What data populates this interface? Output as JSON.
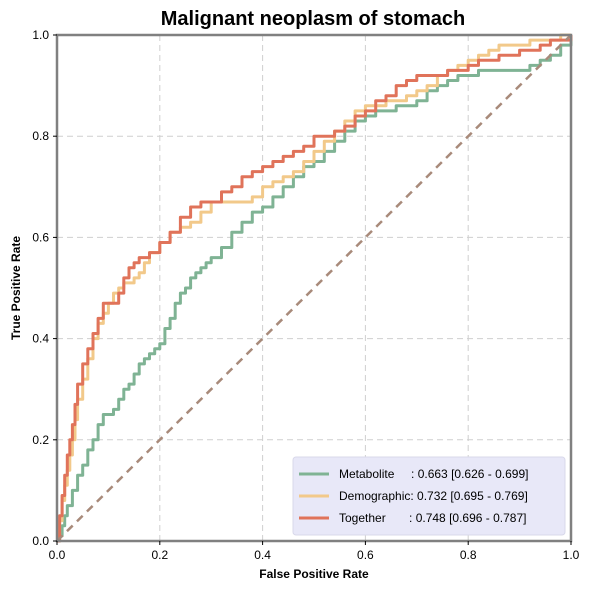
{
  "chart_data": {
    "type": "line",
    "title": "Malignant neoplasm of stomach",
    "xlabel": "False Positive Rate",
    "ylabel": "True Positive Rate",
    "xlim": [
      0,
      1
    ],
    "ylim": [
      0,
      1
    ],
    "xticks": [
      "0.0",
      "0.2",
      "0.4",
      "0.6",
      "0.8",
      "1.0"
    ],
    "yticks": [
      "0.0",
      "0.2",
      "0.4",
      "0.6",
      "0.8",
      "1.0"
    ],
    "grid": true,
    "legend_position": "bottom-right",
    "colors": {
      "metabolite": "#7fb394",
      "demographic": "#f2c98a",
      "together": "#e0735a",
      "chance": "#a88a7a",
      "frame": "#808080",
      "grid": "#cfcfcf",
      "legend_bg": "#e8e8f8"
    },
    "series": [
      {
        "name": "Metabolite",
        "legend_label": "Metabolite     : 0.663 [0.626 - 0.699]",
        "color": "#7fb394",
        "x": [
          0,
          0.005,
          0.01,
          0.015,
          0.02,
          0.03,
          0.04,
          0.05,
          0.06,
          0.07,
          0.08,
          0.09,
          0.1,
          0.11,
          0.12,
          0.13,
          0.14,
          0.15,
          0.16,
          0.17,
          0.18,
          0.19,
          0.2,
          0.21,
          0.22,
          0.23,
          0.24,
          0.25,
          0.26,
          0.27,
          0.28,
          0.29,
          0.3,
          0.32,
          0.34,
          0.36,
          0.38,
          0.4,
          0.42,
          0.44,
          0.46,
          0.48,
          0.5,
          0.52,
          0.54,
          0.56,
          0.58,
          0.6,
          0.62,
          0.64,
          0.66,
          0.68,
          0.7,
          0.72,
          0.74,
          0.76,
          0.78,
          0.8,
          0.82,
          0.84,
          0.86,
          0.88,
          0.9,
          0.92,
          0.94,
          0.96,
          0.98,
          1.0
        ],
        "y": [
          0,
          0.01,
          0.03,
          0.05,
          0.07,
          0.1,
          0.13,
          0.15,
          0.18,
          0.2,
          0.23,
          0.25,
          0.25,
          0.26,
          0.28,
          0.3,
          0.31,
          0.33,
          0.35,
          0.36,
          0.37,
          0.38,
          0.39,
          0.42,
          0.44,
          0.47,
          0.49,
          0.5,
          0.52,
          0.53,
          0.54,
          0.55,
          0.56,
          0.58,
          0.61,
          0.63,
          0.65,
          0.66,
          0.68,
          0.7,
          0.72,
          0.74,
          0.75,
          0.77,
          0.79,
          0.81,
          0.83,
          0.84,
          0.85,
          0.85,
          0.86,
          0.86,
          0.87,
          0.89,
          0.9,
          0.91,
          0.92,
          0.92,
          0.93,
          0.93,
          0.93,
          0.93,
          0.93,
          0.94,
          0.95,
          0.96,
          0.98,
          1.0
        ]
      },
      {
        "name": "Demographic",
        "legend_label": "Demographic: 0.732 [0.695 - 0.769]",
        "color": "#f2c98a",
        "x": [
          0,
          0.005,
          0.01,
          0.015,
          0.02,
          0.025,
          0.03,
          0.035,
          0.04,
          0.05,
          0.06,
          0.07,
          0.08,
          0.09,
          0.1,
          0.11,
          0.12,
          0.13,
          0.14,
          0.15,
          0.16,
          0.17,
          0.18,
          0.2,
          0.22,
          0.24,
          0.26,
          0.28,
          0.3,
          0.32,
          0.34,
          0.36,
          0.38,
          0.4,
          0.42,
          0.44,
          0.46,
          0.48,
          0.5,
          0.52,
          0.54,
          0.56,
          0.58,
          0.6,
          0.62,
          0.64,
          0.66,
          0.68,
          0.7,
          0.72,
          0.74,
          0.76,
          0.78,
          0.8,
          0.82,
          0.84,
          0.86,
          0.88,
          0.9,
          0.92,
          0.94,
          0.96,
          0.98,
          1.0
        ],
        "y": [
          0,
          0.04,
          0.08,
          0.11,
          0.14,
          0.17,
          0.2,
          0.24,
          0.28,
          0.32,
          0.36,
          0.4,
          0.43,
          0.45,
          0.47,
          0.49,
          0.5,
          0.51,
          0.51,
          0.52,
          0.53,
          0.55,
          0.57,
          0.59,
          0.61,
          0.62,
          0.63,
          0.65,
          0.67,
          0.67,
          0.67,
          0.67,
          0.68,
          0.7,
          0.71,
          0.72,
          0.73,
          0.75,
          0.77,
          0.79,
          0.81,
          0.83,
          0.85,
          0.86,
          0.86,
          0.87,
          0.87,
          0.88,
          0.89,
          0.9,
          0.92,
          0.93,
          0.94,
          0.95,
          0.96,
          0.97,
          0.98,
          0.98,
          0.98,
          0.99,
          0.99,
          0.99,
          1.0,
          1.0
        ]
      },
      {
        "name": "Together",
        "legend_label": "Together       : 0.748 [0.696 - 0.787]",
        "color": "#e0735a",
        "x": [
          0,
          0.005,
          0.01,
          0.015,
          0.02,
          0.025,
          0.03,
          0.035,
          0.04,
          0.05,
          0.06,
          0.07,
          0.08,
          0.09,
          0.1,
          0.11,
          0.12,
          0.13,
          0.14,
          0.15,
          0.16,
          0.17,
          0.18,
          0.2,
          0.22,
          0.24,
          0.26,
          0.28,
          0.3,
          0.32,
          0.34,
          0.36,
          0.38,
          0.4,
          0.42,
          0.44,
          0.46,
          0.48,
          0.5,
          0.52,
          0.54,
          0.56,
          0.58,
          0.6,
          0.62,
          0.64,
          0.66,
          0.68,
          0.7,
          0.72,
          0.74,
          0.76,
          0.78,
          0.8,
          0.82,
          0.84,
          0.86,
          0.88,
          0.9,
          0.92,
          0.94,
          0.96,
          0.98,
          1.0
        ],
        "y": [
          0,
          0.05,
          0.09,
          0.13,
          0.17,
          0.2,
          0.23,
          0.27,
          0.31,
          0.35,
          0.38,
          0.41,
          0.44,
          0.47,
          0.47,
          0.47,
          0.49,
          0.52,
          0.54,
          0.55,
          0.56,
          0.56,
          0.57,
          0.59,
          0.61,
          0.64,
          0.66,
          0.67,
          0.67,
          0.69,
          0.7,
          0.72,
          0.73,
          0.74,
          0.75,
          0.76,
          0.77,
          0.78,
          0.8,
          0.8,
          0.81,
          0.82,
          0.84,
          0.85,
          0.87,
          0.88,
          0.9,
          0.91,
          0.92,
          0.92,
          0.92,
          0.93,
          0.93,
          0.94,
          0.95,
          0.95,
          0.96,
          0.96,
          0.97,
          0.97,
          0.98,
          0.99,
          0.99,
          1.0
        ]
      },
      {
        "name": "Chance",
        "color": "#a88a7a",
        "dashed": true,
        "x": [
          0,
          1
        ],
        "y": [
          0,
          1
        ]
      }
    ]
  }
}
